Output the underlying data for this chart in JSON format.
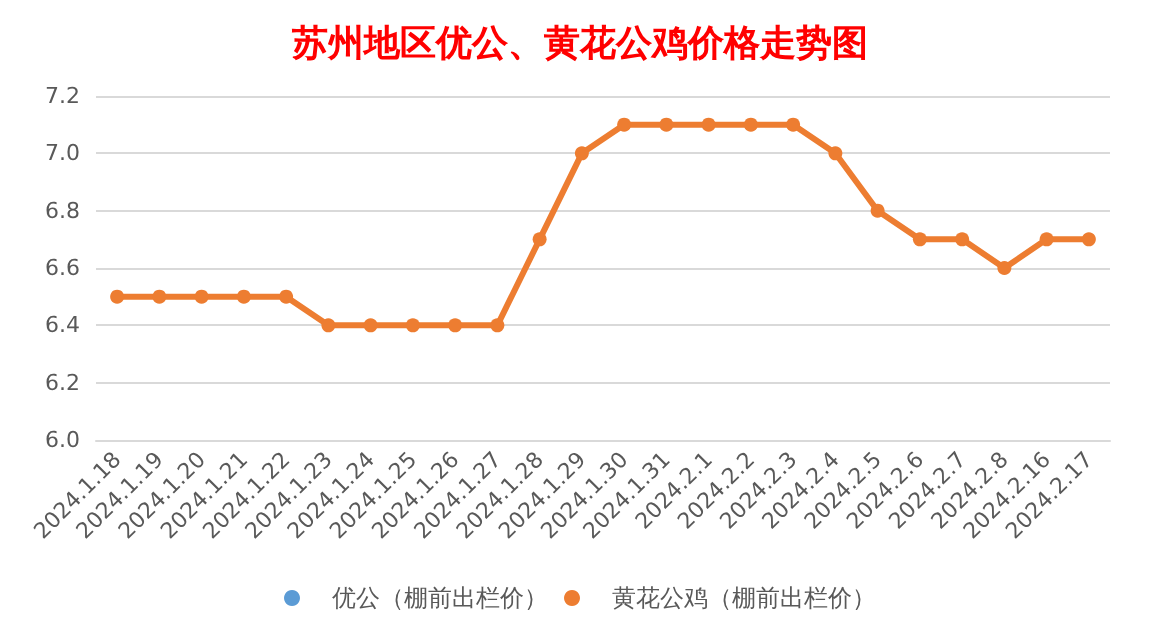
{
  "chart_data": {
    "type": "line",
    "title": "苏州地区优公、黄花公鸡价格走势图",
    "categories": [
      "2024.1.18",
      "2024.1.19",
      "2024.1.20",
      "2024.1.21",
      "2024.1.22",
      "2024.1.23",
      "2024.1.24",
      "2024.1.25",
      "2024.1.26",
      "2024.1.27",
      "2024.1.28",
      "2024.1.29",
      "2024.1.30",
      "2024.1.31",
      "2024.2.1",
      "2024.2.2",
      "2024.2.3",
      "2024.2.4",
      "2024.2.5",
      "2024.2.6",
      "2024.2.7",
      "2024.2.8",
      "2024.2.16",
      "2024.2.17"
    ],
    "series": [
      {
        "name": "优公（棚前出栏价）",
        "color": "#5b9bd5",
        "values": [
          null,
          null,
          null,
          null,
          null,
          null,
          null,
          null,
          null,
          null,
          null,
          null,
          null,
          null,
          null,
          null,
          null,
          null,
          null,
          null,
          null,
          null,
          null,
          null
        ]
      },
      {
        "name": "黄花公鸡（棚前出栏价）",
        "color": "#ed7d31",
        "values": [
          6.5,
          6.5,
          6.5,
          6.5,
          6.5,
          6.4,
          6.4,
          6.4,
          6.4,
          6.4,
          6.7,
          7.0,
          7.1,
          7.1,
          7.1,
          7.1,
          7.1,
          7.0,
          6.8,
          6.7,
          6.7,
          6.6,
          6.7,
          6.7
        ]
      }
    ],
    "ylim": [
      6.0,
      7.2
    ],
    "yticks": [
      {
        "value": 6.0,
        "label": "6.0"
      },
      {
        "value": 6.2,
        "label": "6.2"
      },
      {
        "value": 6.4,
        "label": "6.4"
      },
      {
        "value": 6.6,
        "label": "6.6"
      },
      {
        "value": 6.8,
        "label": "6.8"
      },
      {
        "value": 7.0,
        "label": "7.0"
      },
      {
        "value": 7.2,
        "label": "7.2"
      }
    ],
    "grid": "y",
    "legend": "bottom",
    "marker": "circle",
    "line_style": "solid"
  }
}
